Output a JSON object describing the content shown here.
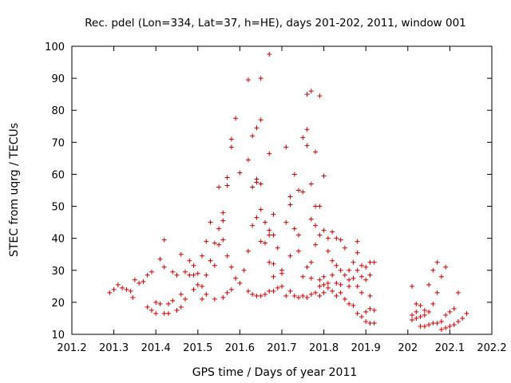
{
  "chart_data": {
    "type": "scatter",
    "title": "Rec. pdel (Lon=334, Lat=37, h=HE), days 201-202, 2011, window 001",
    "xlabel": "GPS time / Days of year 2011",
    "ylabel": "STEC from uqrg / TECUs",
    "xlim": [
      201.2,
      202.2
    ],
    "ylim": [
      10,
      100
    ],
    "xticks": [
      "201.2",
      "201.3",
      "201.4",
      "201.5",
      "201.6",
      "201.7",
      "201.8",
      "201.9",
      "202",
      "202.1",
      "202.2"
    ],
    "yticks": [
      "10",
      "20",
      "30",
      "40",
      "50",
      "60",
      "70",
      "80",
      "90",
      "100"
    ],
    "grid": false,
    "legend": "none",
    "marker": "plus",
    "color": "#cc0000",
    "series": [
      {
        "points": [
          [
            201.29,
            23
          ],
          [
            201.3,
            24
          ],
          [
            201.31,
            25.5
          ],
          [
            201.32,
            24.5
          ],
          [
            201.33,
            24
          ],
          [
            201.34,
            23.5
          ],
          [
            201.345,
            21.5
          ],
          [
            201.35,
            27
          ],
          [
            201.36,
            26
          ],
          [
            201.37,
            26.5
          ],
          [
            201.38,
            28.5
          ],
          [
            201.38,
            18.5
          ],
          [
            201.39,
            29.5
          ],
          [
            201.39,
            17.5
          ],
          [
            201.4,
            16.5
          ],
          [
            201.4,
            20
          ],
          [
            201.41,
            33.5
          ],
          [
            201.41,
            19.5
          ],
          [
            201.42,
            39.5
          ],
          [
            201.42,
            16.5
          ],
          [
            201.42,
            31
          ],
          [
            201.43,
            19.5
          ],
          [
            201.43,
            16.5
          ],
          [
            201.44,
            29.5
          ],
          [
            201.44,
            20.5
          ],
          [
            201.45,
            17.5
          ],
          [
            201.45,
            28.5
          ],
          [
            201.46,
            35
          ],
          [
            201.46,
            22.5
          ],
          [
            201.46,
            18.5
          ],
          [
            201.47,
            29.5
          ],
          [
            201.47,
            21
          ],
          [
            201.48,
            33
          ],
          [
            201.48,
            28.5
          ],
          [
            201.49,
            31.5
          ],
          [
            201.49,
            28.5
          ],
          [
            201.49,
            24
          ],
          [
            201.5,
            29
          ],
          [
            201.5,
            25.5
          ],
          [
            201.51,
            34.5
          ],
          [
            201.51,
            25
          ],
          [
            201.51,
            21
          ],
          [
            201.52,
            39
          ],
          [
            201.52,
            28.5
          ],
          [
            201.52,
            22.5
          ],
          [
            201.53,
            45
          ],
          [
            201.53,
            33
          ],
          [
            201.54,
            38.5
          ],
          [
            201.54,
            31.5
          ],
          [
            201.54,
            21
          ],
          [
            201.55,
            56
          ],
          [
            201.55,
            43
          ],
          [
            201.55,
            38
          ],
          [
            201.56,
            48
          ],
          [
            201.56,
            45.5
          ],
          [
            201.56,
            39.5
          ],
          [
            201.56,
            21.5
          ],
          [
            201.57,
            59
          ],
          [
            201.57,
            56.5
          ],
          [
            201.57,
            34.5
          ],
          [
            201.57,
            23
          ],
          [
            201.58,
            71
          ],
          [
            201.58,
            68.5
          ],
          [
            201.58,
            31
          ],
          [
            201.58,
            24
          ],
          [
            201.59,
            77.5
          ],
          [
            201.59,
            27.5
          ],
          [
            201.6,
            60.5
          ],
          [
            201.6,
            26
          ],
          [
            201.61,
            30
          ],
          [
            201.62,
            89.5
          ],
          [
            201.62,
            64.5
          ],
          [
            201.62,
            36
          ],
          [
            201.62,
            23.5
          ],
          [
            201.63,
            72
          ],
          [
            201.63,
            56
          ],
          [
            201.63,
            44
          ],
          [
            201.63,
            22.5
          ],
          [
            201.64,
            74.5
          ],
          [
            201.64,
            58.5
          ],
          [
            201.64,
            57.5
          ],
          [
            201.64,
            46.5
          ],
          [
            201.64,
            22
          ],
          [
            201.65,
            90
          ],
          [
            201.65,
            77
          ],
          [
            201.65,
            57
          ],
          [
            201.65,
            49
          ],
          [
            201.65,
            39
          ],
          [
            201.65,
            22
          ],
          [
            201.66,
            45
          ],
          [
            201.66,
            38.5
          ],
          [
            201.66,
            22.5
          ],
          [
            201.67,
            97.5
          ],
          [
            201.67,
            66.5
          ],
          [
            201.67,
            42.5
          ],
          [
            201.67,
            41
          ],
          [
            201.67,
            32.5
          ],
          [
            201.67,
            23.5
          ],
          [
            201.68,
            47.5
          ],
          [
            201.68,
            41
          ],
          [
            201.68,
            32
          ],
          [
            201.68,
            28
          ],
          [
            201.68,
            23.5
          ],
          [
            201.69,
            37
          ],
          [
            201.69,
            24.5
          ],
          [
            201.7,
            30
          ],
          [
            201.7,
            29
          ],
          [
            201.7,
            25
          ],
          [
            201.71,
            68.5
          ],
          [
            201.71,
            45
          ],
          [
            201.71,
            22
          ],
          [
            201.72,
            53
          ],
          [
            201.72,
            50.5
          ],
          [
            201.72,
            34.5
          ],
          [
            201.72,
            23.5
          ],
          [
            201.73,
            60
          ],
          [
            201.73,
            43
          ],
          [
            201.73,
            22
          ],
          [
            201.74,
            55
          ],
          [
            201.74,
            41
          ],
          [
            201.74,
            36
          ],
          [
            201.74,
            21.5
          ],
          [
            201.75,
            71.5
          ],
          [
            201.75,
            54.5
          ],
          [
            201.75,
            28
          ],
          [
            201.75,
            22
          ],
          [
            201.76,
            85
          ],
          [
            201.76,
            74
          ],
          [
            201.76,
            69
          ],
          [
            201.76,
            31
          ],
          [
            201.76,
            21.5
          ],
          [
            201.77,
            86
          ],
          [
            201.77,
            57
          ],
          [
            201.77,
            46
          ],
          [
            201.77,
            32.5
          ],
          [
            201.77,
            27.5
          ],
          [
            201.77,
            22.5
          ],
          [
            201.78,
            67
          ],
          [
            201.78,
            50
          ],
          [
            201.78,
            44
          ],
          [
            201.78,
            38
          ],
          [
            201.78,
            23
          ],
          [
            201.79,
            84.5
          ],
          [
            201.79,
            50
          ],
          [
            201.79,
            41
          ],
          [
            201.79,
            27
          ],
          [
            201.79,
            25
          ],
          [
            201.79,
            22
          ],
          [
            201.8,
            59.5
          ],
          [
            201.8,
            42.5
          ],
          [
            201.8,
            28
          ],
          [
            201.8,
            25.5
          ],
          [
            201.8,
            23
          ],
          [
            201.81,
            40
          ],
          [
            201.81,
            36
          ],
          [
            201.81,
            26
          ],
          [
            201.81,
            24.5
          ],
          [
            201.82,
            42
          ],
          [
            201.82,
            33
          ],
          [
            201.82,
            28.5
          ],
          [
            201.82,
            23.5
          ],
          [
            201.83,
            40
          ],
          [
            201.83,
            31.5
          ],
          [
            201.83,
            26
          ],
          [
            201.83,
            22
          ],
          [
            201.84,
            39.5
          ],
          [
            201.84,
            30
          ],
          [
            201.84,
            25.5
          ],
          [
            201.84,
            23
          ],
          [
            201.85,
            37
          ],
          [
            201.85,
            28.5
          ],
          [
            201.85,
            21
          ],
          [
            201.86,
            30
          ],
          [
            201.86,
            27
          ],
          [
            201.86,
            25
          ],
          [
            201.86,
            19.5
          ],
          [
            201.87,
            32.5
          ],
          [
            201.87,
            27.5
          ],
          [
            201.87,
            19
          ],
          [
            201.88,
            39
          ],
          [
            201.88,
            35.5
          ],
          [
            201.88,
            30
          ],
          [
            201.88,
            25
          ],
          [
            201.88,
            16.5
          ],
          [
            201.89,
            31.5
          ],
          [
            201.89,
            28
          ],
          [
            201.89,
            23
          ],
          [
            201.89,
            15.5
          ],
          [
            201.9,
            31
          ],
          [
            201.9,
            27
          ],
          [
            201.9,
            17
          ],
          [
            201.9,
            14
          ],
          [
            201.91,
            32.5
          ],
          [
            201.91,
            28.5
          ],
          [
            201.91,
            22
          ],
          [
            201.91,
            18
          ],
          [
            201.91,
            13.5
          ],
          [
            201.92,
            32.5
          ],
          [
            201.92,
            17.5
          ],
          [
            201.92,
            13.5
          ],
          [
            202.01,
            25
          ],
          [
            202.01,
            16
          ],
          [
            202.01,
            14.5
          ],
          [
            202.02,
            19.5
          ],
          [
            202.02,
            17
          ],
          [
            202.02,
            15
          ],
          [
            202.03,
            19
          ],
          [
            202.03,
            15.5
          ],
          [
            202.03,
            12.5
          ],
          [
            202.04,
            17.5
          ],
          [
            202.04,
            16
          ],
          [
            202.04,
            12.5
          ],
          [
            202.05,
            25.5
          ],
          [
            202.05,
            17
          ],
          [
            202.05,
            13
          ],
          [
            202.06,
            30
          ],
          [
            202.06,
            19.5
          ],
          [
            202.06,
            13.5
          ],
          [
            202.07,
            32.5
          ],
          [
            202.07,
            23
          ],
          [
            202.07,
            13.5
          ],
          [
            202.08,
            28
          ],
          [
            202.08,
            14
          ],
          [
            202.08,
            11.5
          ],
          [
            202.09,
            31
          ],
          [
            202.09,
            16
          ],
          [
            202.09,
            12
          ],
          [
            202.1,
            17
          ],
          [
            202.1,
            12.5
          ],
          [
            202.11,
            18
          ],
          [
            202.11,
            13
          ],
          [
            202.12,
            23
          ],
          [
            202.12,
            14
          ],
          [
            202.13,
            15
          ],
          [
            202.14,
            16.5
          ]
        ]
      }
    ]
  }
}
